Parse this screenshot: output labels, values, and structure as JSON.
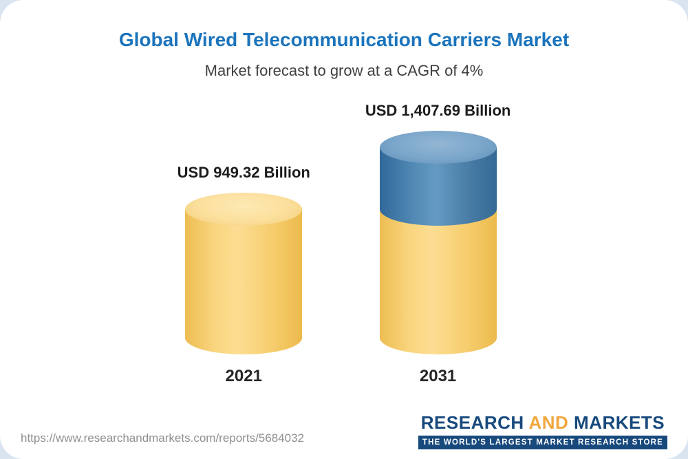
{
  "header": {
    "title": "Global Wired Telecommunication Carriers Market",
    "subtitle": "Market forecast to grow at a CAGR of 4%"
  },
  "chart_data": {
    "type": "bar",
    "style": "3d-cylinder",
    "title": "Global Wired Telecommunication Carriers Market",
    "subtitle": "Market forecast to grow at a CAGR of 4%",
    "unit": "USD Billion",
    "categories": [
      "2021",
      "2031"
    ],
    "values": [
      949.32,
      1407.69
    ],
    "value_labels": [
      "USD 949.32 Billion",
      "USD 1,407.69 Billion"
    ],
    "cagr": "4%",
    "segments": [
      {
        "category": "2021",
        "parts": [
          {
            "name": "base",
            "value": 949.32,
            "color": "#f6c75f"
          }
        ]
      },
      {
        "category": "2031",
        "parts": [
          {
            "name": "base",
            "value": 949.32,
            "color": "#f6c75f"
          },
          {
            "name": "growth",
            "value": 458.37,
            "color": "#3d729f"
          }
        ]
      }
    ],
    "legend": "none",
    "axes": "none"
  },
  "footer": {
    "url": "https://www.researchandmarkets.com/reports/5684032",
    "logo": {
      "word1": "RESEARCH",
      "word2": "AND",
      "word3": "MARKETS",
      "tagline": "THE WORLD'S LARGEST MARKET RESEARCH STORE"
    }
  },
  "colors": {
    "title_blue": "#1b74bc",
    "bar_yellow": "#f6c75f",
    "bar_blue": "#3d729f",
    "logo_blue": "#17497d",
    "logo_gold": "#f0a73d",
    "background_corner": "#d9e4f0"
  }
}
